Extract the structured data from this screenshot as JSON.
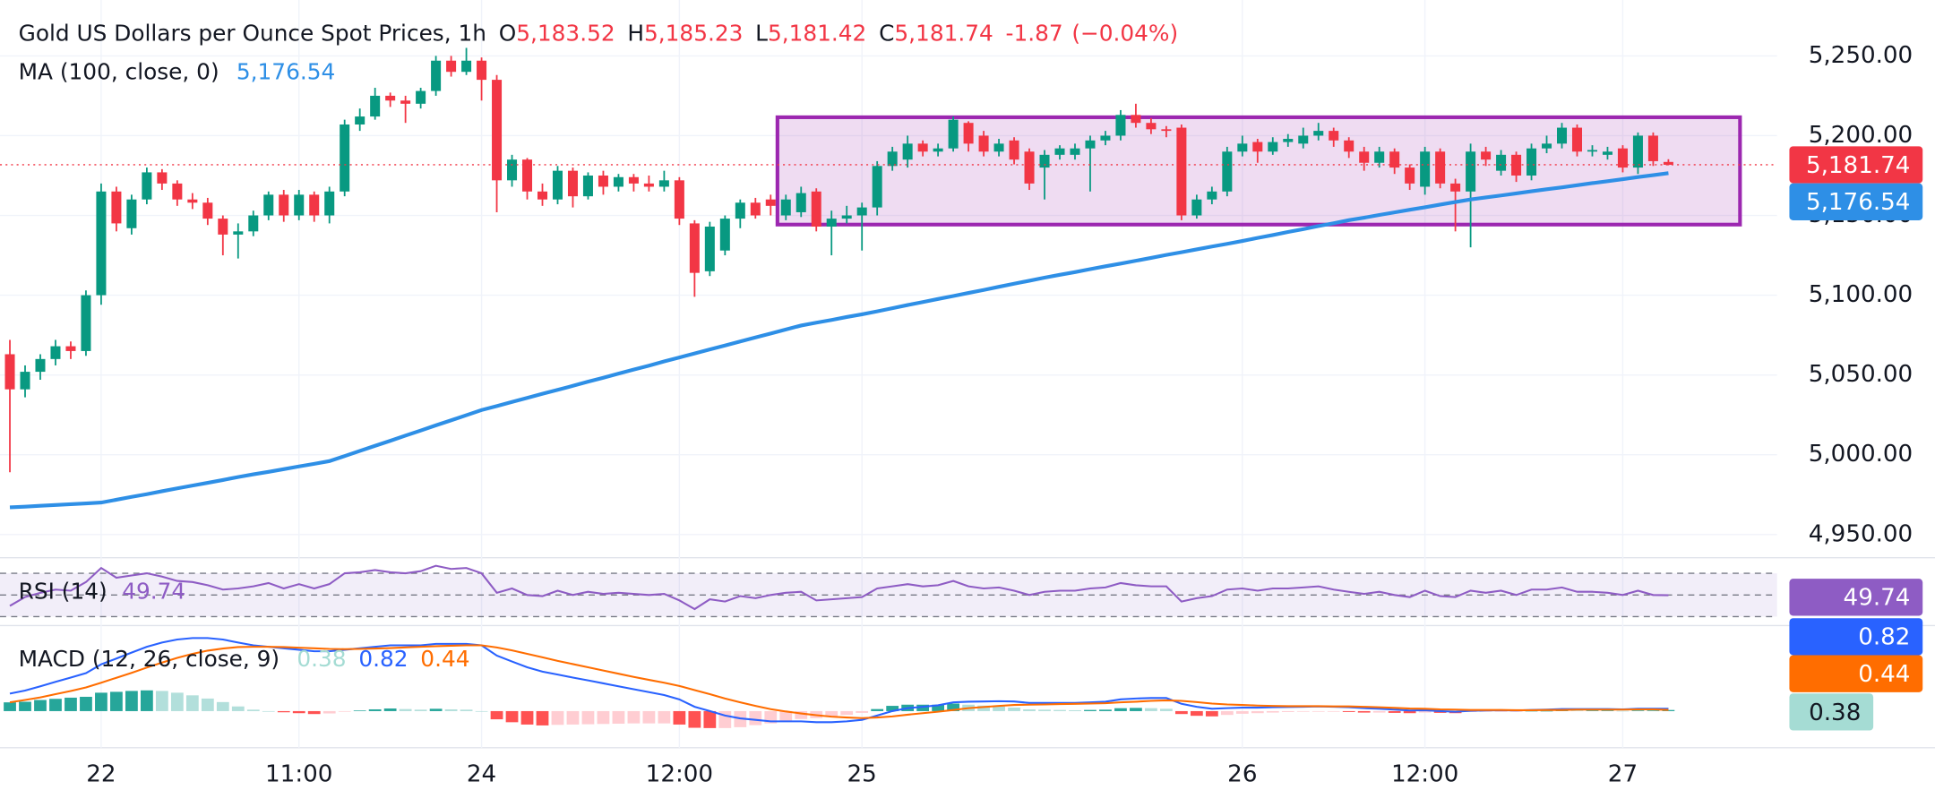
{
  "chart_data": [
    {
      "type": "candlestick",
      "title": "Gold US Dollars per Ounce Spot Prices, 1h",
      "legend": {
        "o_label": "O",
        "open": "5,183.52",
        "h_label": "H",
        "high": "5,185.23",
        "l_label": "L",
        "low": "5,181.42",
        "c_label": "C",
        "close": "5,181.74",
        "change": "-1.87",
        "change_pct": "(−0.04%)"
      },
      "categories": [
        null,
        null,
        null,
        null,
        null,
        null,
        "22",
        null,
        null,
        null,
        null,
        null,
        null,
        null,
        null,
        null,
        null,
        null,
        null,
        "11:00",
        null,
        null,
        null,
        null,
        null,
        null,
        null,
        null,
        null,
        null,
        null,
        "24",
        null,
        null,
        null,
        null,
        null,
        null,
        null,
        null,
        null,
        null,
        null,
        null,
        "12:00",
        null,
        null,
        null,
        null,
        null,
        null,
        null,
        null,
        null,
        null,
        null,
        "25",
        null,
        null,
        null,
        null,
        null,
        null,
        null,
        null,
        null,
        null,
        null,
        null,
        null,
        null,
        null,
        null,
        null,
        null,
        null,
        null,
        null,
        null,
        null,
        null,
        "26",
        null,
        null,
        null,
        null,
        null,
        null,
        null,
        null,
        null,
        null,
        null,
        "12:00",
        null,
        null,
        null,
        null,
        null,
        null,
        null,
        null,
        null,
        null,
        null,
        null,
        "27",
        null,
        null,
        null
      ],
      "open": [
        5063,
        5041,
        5052,
        5060,
        5068,
        5065,
        5100,
        5165,
        5142,
        5160,
        5177,
        5170,
        5160,
        5158,
        5148,
        5138,
        5140,
        5150,
        5163,
        5150,
        5163,
        5150,
        5165,
        5207,
        5212,
        5225,
        5222,
        5220,
        5228,
        5247,
        5240,
        5247,
        5235,
        5172,
        5185,
        5165,
        5160,
        5178,
        5162,
        5175,
        5168,
        5174,
        5170,
        5168,
        5172,
        5145,
        5115,
        5128,
        5148,
        5158,
        5160,
        5150,
        5152,
        5165,
        5143,
        5148,
        5150,
        5155,
        5181,
        5185,
        5195,
        5190,
        5192,
        5208,
        5200,
        5190,
        5197,
        5190,
        5180,
        5188,
        5188,
        5192,
        5197,
        5200,
        5213,
        5208,
        5204,
        5205,
        5150,
        5160,
        5165,
        5190,
        5196,
        5190,
        5196,
        5195,
        5200,
        5203,
        5197,
        5190,
        5183,
        5190,
        5180,
        5168,
        5190,
        5170,
        5165,
        5190,
        5178,
        5188,
        5175,
        5192,
        5195,
        5205,
        5190,
        5188,
        5192,
        5180,
        5200,
        5183.52
      ],
      "high": [
        5072,
        5056,
        5063,
        5072,
        5071,
        5103,
        5170,
        5168,
        5163,
        5180,
        5179,
        5172,
        5164,
        5161,
        5150,
        5145,
        5153,
        5165,
        5166,
        5166,
        5165,
        5168,
        5210,
        5217,
        5230,
        5227,
        5225,
        5230,
        5250,
        5250,
        5255,
        5249,
        5238,
        5188,
        5186,
        5170,
        5181,
        5180,
        5177,
        5178,
        5176,
        5176,
        5175,
        5178,
        5174,
        5147,
        5146,
        5150,
        5160,
        5161,
        5163,
        5163,
        5168,
        5167,
        5153,
        5156,
        5158,
        5184,
        5193,
        5200,
        5197,
        5195,
        5212,
        5209,
        5203,
        5198,
        5199,
        5192,
        5191,
        5194,
        5195,
        5200,
        5203,
        5216,
        5220,
        5211,
        5206,
        5207,
        5163,
        5168,
        5193,
        5200,
        5198,
        5199,
        5201,
        5205,
        5208,
        5205,
        5199,
        5193,
        5193,
        5192,
        5182,
        5193,
        5192,
        5173,
        5195,
        5193,
        5191,
        5190,
        5195,
        5200,
        5208,
        5207,
        5194,
        5193,
        5194,
        5202,
        5202,
        5185.23
      ],
      "low": [
        4989,
        5036,
        5047,
        5056,
        5060,
        5062,
        5094,
        5140,
        5138,
        5157,
        5166,
        5156,
        5154,
        5144,
        5125,
        5123,
        5137,
        5147,
        5146,
        5147,
        5146,
        5145,
        5162,
        5203,
        5210,
        5218,
        5208,
        5217,
        5225,
        5237,
        5238,
        5222,
        5152,
        5168,
        5160,
        5156,
        5157,
        5155,
        5160,
        5163,
        5165,
        5165,
        5165,
        5165,
        5144,
        5099,
        5112,
        5125,
        5142,
        5148,
        5150,
        5147,
        5149,
        5140,
        5125,
        5145,
        5128,
        5150,
        5178,
        5180,
        5187,
        5187,
        5190,
        5190,
        5187,
        5187,
        5182,
        5166,
        5160,
        5185,
        5185,
        5165,
        5194,
        5197,
        5205,
        5201,
        5199,
        5147,
        5148,
        5157,
        5162,
        5187,
        5183,
        5188,
        5193,
        5192,
        5197,
        5193,
        5186,
        5178,
        5180,
        5176,
        5166,
        5163,
        5167,
        5140,
        5130,
        5181,
        5175,
        5171,
        5172,
        5189,
        5192,
        5187,
        5187,
        5185,
        5177,
        5176,
        5181,
        5181.42
      ],
      "close": [
        5041,
        5052,
        5060,
        5068,
        5065,
        5100,
        5165,
        5145,
        5160,
        5177,
        5170,
        5160,
        5158,
        5148,
        5138,
        5140,
        5150,
        5163,
        5150,
        5163,
        5150,
        5165,
        5207,
        5212,
        5225,
        5222,
        5220,
        5228,
        5247,
        5240,
        5247,
        5235,
        5172,
        5185,
        5165,
        5160,
        5178,
        5162,
        5175,
        5168,
        5174,
        5170,
        5168,
        5172,
        5148,
        5114,
        5143,
        5148,
        5158,
        5150,
        5156,
        5160,
        5164,
        5143,
        5148,
        5150,
        5155,
        5181,
        5190,
        5195,
        5190,
        5192,
        5210,
        5195,
        5190,
        5195,
        5185,
        5170,
        5188,
        5192,
        5192,
        5197,
        5200,
        5213,
        5208,
        5204,
        5203,
        5150,
        5160,
        5165,
        5190,
        5195,
        5190,
        5196,
        5198,
        5200,
        5203,
        5197,
        5190,
        5183,
        5190,
        5180,
        5170,
        5190,
        5170,
        5165,
        5190,
        5185,
        5188,
        5175,
        5192,
        5195,
        5205,
        5190,
        5191,
        5190,
        5180,
        5200,
        5184,
        5181.74
      ],
      "up_color": "#089981",
      "down_color": "#f23645",
      "ylim": [
        4937,
        5285
      ],
      "yticks": [
        {
          "value": 4950,
          "label": "4,950.00"
        },
        {
          "value": 5000,
          "label": "5,000.00"
        },
        {
          "value": 5050,
          "label": "5,050.00"
        },
        {
          "value": 5100,
          "label": "5,100.00"
        },
        {
          "value": 5150,
          "label": "5,150.00"
        },
        {
          "value": 5200,
          "label": "5,200.00"
        },
        {
          "value": 5250,
          "label": "5,250.00"
        }
      ],
      "grid": true,
      "overlay": {
        "name": "MA (100, close, 0)",
        "value_label": "5,176.54",
        "color": "#2e8fe6",
        "values": [
          4967,
          4967.5,
          4968,
          4968.5,
          4969,
          4969.5,
          4970,
          4971.8,
          4973.6,
          4975.3,
          4977.1,
          4978.9,
          4980.7,
          4982.4,
          4984.2,
          4986,
          4987.7,
          4989.3,
          4991,
          4992.7,
          4994.3,
          4996,
          4999.2,
          5002.4,
          5005.6,
          5008.8,
          5012,
          5015.2,
          5018.4,
          5021.6,
          5024.8,
          5028,
          5030.5,
          5033.1,
          5035.6,
          5038.2,
          5040.7,
          5043.2,
          5045.8,
          5048.3,
          5050.8,
          5053.4,
          5055.9,
          5058.5,
          5061,
          5063.5,
          5066,
          5068.5,
          5071,
          5073.5,
          5076,
          5078.5,
          5081,
          5082.8,
          5084.5,
          5086.3,
          5088,
          5089.9,
          5091.8,
          5093.8,
          5095.7,
          5097.6,
          5099.5,
          5101.4,
          5103.3,
          5105.3,
          5107.2,
          5109.1,
          5111,
          5112.8,
          5114.5,
          5116.3,
          5118.1,
          5119.8,
          5121.6,
          5123.4,
          5125.2,
          5126.9,
          5128.7,
          5130.5,
          5132.2,
          5134,
          5135.9,
          5137.7,
          5139.6,
          5141.4,
          5143.3,
          5145.1,
          5147,
          5148.6,
          5150.3,
          5151.9,
          5153.5,
          5155.1,
          5156.8,
          5158.4,
          5160,
          5161.3,
          5162.5,
          5163.8,
          5165.1,
          5166.4,
          5167.6,
          5168.9,
          5170.2,
          5171.5,
          5172.7,
          5174,
          5175.3,
          5176.54
        ]
      }
    },
    {
      "type": "line",
      "name": "RSI (14)",
      "value_label": "49.74",
      "color": "#8e5cc4",
      "ylim": [
        24,
        81
      ],
      "levels": [
        70,
        50,
        30
      ],
      "values": [
        40,
        48,
        52,
        55,
        54,
        62,
        75,
        66,
        68,
        70,
        67,
        63,
        62,
        59,
        55,
        56,
        58,
        61,
        56,
        60,
        56,
        60,
        70,
        71,
        73,
        71,
        70,
        72,
        77,
        74,
        75,
        70,
        52,
        56,
        50,
        49,
        54,
        50,
        53,
        51,
        52,
        51,
        50,
        51,
        45,
        37,
        46,
        44,
        49,
        47,
        50,
        52,
        53,
        45,
        46,
        47,
        48,
        56,
        58,
        60,
        58,
        59,
        63,
        58,
        56,
        57,
        54,
        50,
        53,
        54,
        54,
        56,
        57,
        61,
        59,
        58,
        58,
        44,
        47,
        49,
        55,
        56,
        54,
        56,
        56,
        57,
        58,
        55,
        53,
        51,
        53,
        50,
        48,
        54,
        49,
        48,
        54,
        52,
        54,
        50,
        55,
        55,
        57,
        53,
        53,
        52,
        50,
        54,
        50,
        49.74
      ]
    },
    {
      "type": "macd",
      "name": "MACD (12, 26, close, 9)",
      "ylim": [
        -10,
        28
      ],
      "histogram": {
        "value_label": "0.38",
        "label_color": "#a5dcd4",
        "colors": [
          "#26a69a",
          "#b2dfdb",
          "#ff5252",
          "#ffcdd2"
        ],
        "values": [
          3,
          3.2,
          3.8,
          4.2,
          4.6,
          4.9,
          6.3,
          6.6,
          6.9,
          7.1,
          6.9,
          6.3,
          5.4,
          4.3,
          3.1,
          1.6,
          0.5,
          0,
          -0.4,
          -0.7,
          -1,
          -0.8,
          -0.2,
          0.2,
          0.6,
          0.9,
          0.7,
          0.5,
          0.8,
          0.6,
          0.5,
          0,
          -2.8,
          -3.8,
          -4.6,
          -4.9,
          -4.7,
          -4.6,
          -4.5,
          -4.4,
          -4.3,
          -4.2,
          -4.2,
          -4.2,
          -4.6,
          -5.7,
          -5.8,
          -5.8,
          -5.5,
          -4.8,
          -4.2,
          -3.4,
          -2.7,
          -2.4,
          -1.9,
          -1.3,
          -0.6,
          0.7,
          1.8,
          2.2,
          2.2,
          2.2,
          2.6,
          2.2,
          1.9,
          1.6,
          1.2,
          0.6,
          0.5,
          0.4,
          0.3,
          0.4,
          0.5,
          1,
          1.1,
          1,
          0.8,
          -1,
          -1.6,
          -1.8,
          -1.3,
          -0.9,
          -0.7,
          -0.5,
          -0.3,
          -0.2,
          -0.1,
          -0.1,
          -0.3,
          -0.5,
          -0.5,
          -0.6,
          -0.7,
          -0.5,
          -0.6,
          -0.7,
          -0.3,
          -0.2,
          -0.1,
          -0.1,
          0.1,
          0.1,
          0.3,
          0.2,
          0.2,
          0.2,
          0.1,
          0.2,
          0.2,
          0.38
        ]
      },
      "macd": {
        "value_label": "0.82",
        "color": "#2962ff",
        "values": [
          6,
          7,
          8.5,
          10,
          11.5,
          13,
          16,
          18,
          20,
          22,
          23.5,
          24.5,
          25,
          25,
          24.5,
          23.5,
          22.5,
          22,
          21.5,
          21,
          20.5,
          20.5,
          21,
          21.5,
          22,
          22.5,
          22.5,
          22.5,
          23,
          23,
          23,
          22.5,
          19,
          17,
          15,
          13.5,
          12.5,
          11.5,
          10.5,
          9.5,
          8.5,
          7.5,
          6.5,
          5.5,
          4,
          1.5,
          0,
          -1.5,
          -2.5,
          -3,
          -3.5,
          -3.5,
          -3.5,
          -3.8,
          -3.8,
          -3.5,
          -3,
          -1.5,
          0,
          1,
          1.5,
          2,
          3,
          3.2,
          3.3,
          3.4,
          3.3,
          2.8,
          2.8,
          2.8,
          2.8,
          3,
          3.2,
          4,
          4.3,
          4.5,
          4.5,
          2.5,
          1.5,
          0.8,
          1,
          1.2,
          1.2,
          1.3,
          1.4,
          1.5,
          1.6,
          1.5,
          1.3,
          1,
          0.8,
          0.5,
          0.2,
          0.3,
          0,
          -0.2,
          0.1,
          0.2,
          0.3,
          0.2,
          0.4,
          0.5,
          0.7,
          0.7,
          0.7,
          0.7,
          0.6,
          0.8,
          0.8,
          0.82
        ]
      },
      "signal": {
        "value_label": "0.44",
        "color": "#ff6d00",
        "values": [
          3,
          3.8,
          4.7,
          5.8,
          6.9,
          8.1,
          9.7,
          11.4,
          13.1,
          14.9,
          16.6,
          18.2,
          19.6,
          20.7,
          21.4,
          21.9,
          22,
          22,
          21.9,
          21.7,
          21.5,
          21.3,
          21.2,
          21.3,
          21.4,
          21.6,
          21.8,
          22,
          22.2,
          22.4,
          22.5,
          22.5,
          21.8,
          20.8,
          19.6,
          18.4,
          17.2,
          16.1,
          15,
          13.9,
          12.8,
          11.7,
          10.7,
          9.7,
          8.6,
          7.2,
          5.8,
          4.3,
          3,
          1.8,
          0.7,
          -0.1,
          -0.8,
          -1.4,
          -1.9,
          -2.2,
          -2.4,
          -2.2,
          -1.8,
          -1.2,
          -0.7,
          -0.2,
          0.4,
          1,
          1.4,
          1.8,
          2.1,
          2.2,
          2.3,
          2.4,
          2.5,
          2.6,
          2.7,
          3,
          3.2,
          3.5,
          3.7,
          3.5,
          3.1,
          2.6,
          2.3,
          2.1,
          1.9,
          1.8,
          1.7,
          1.7,
          1.7,
          1.6,
          1.6,
          1.5,
          1.3,
          1.1,
          0.9,
          0.8,
          0.6,
          0.5,
          0.4,
          0.4,
          0.4,
          0.3,
          0.3,
          0.4,
          0.4,
          0.5,
          0.5,
          0.5,
          0.5,
          0.6,
          0.6,
          0.44
        ]
      }
    }
  ]
}
